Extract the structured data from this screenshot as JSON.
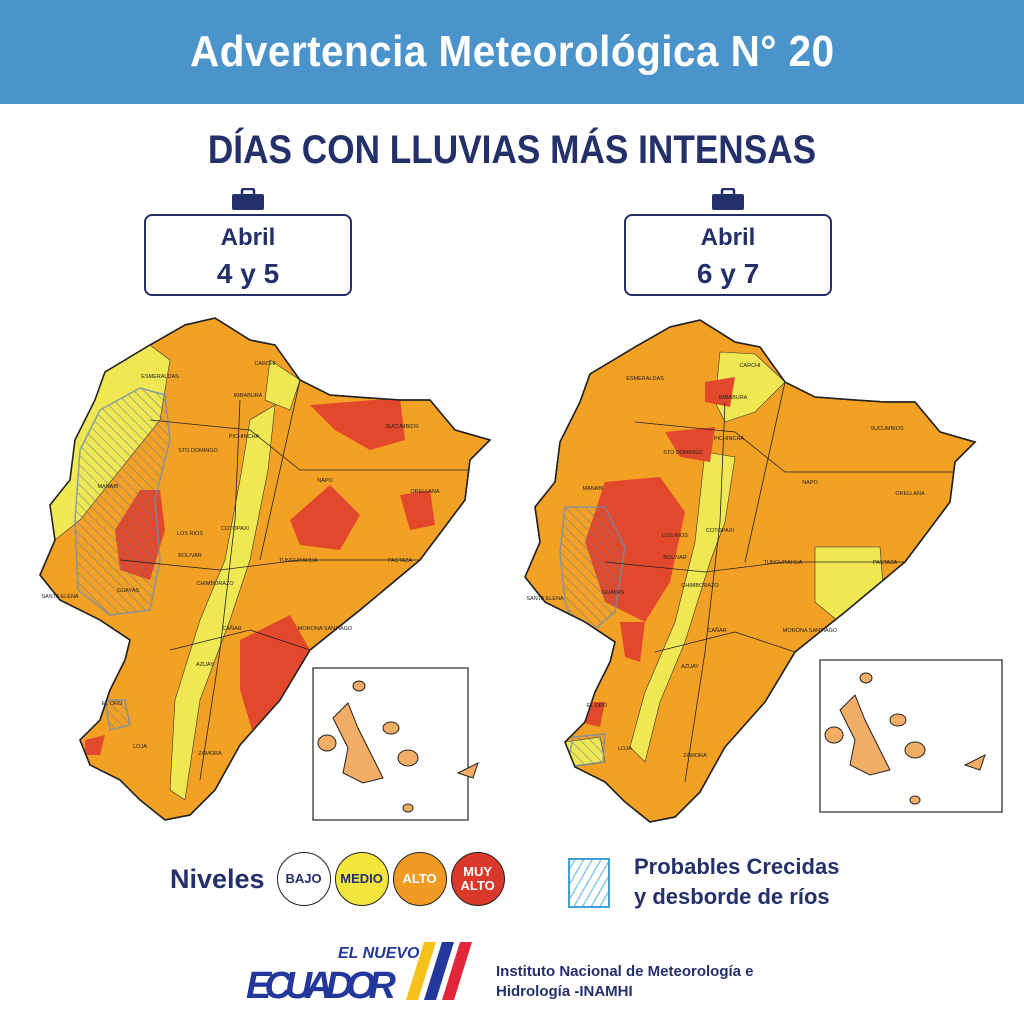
{
  "header": {
    "title": "Advertencia Meteorológica N° 20"
  },
  "subtitle": {
    "normal": "DÍAS CON LLUVIAS ",
    "bold": "MÁS INTENSAS"
  },
  "panels": [
    {
      "month": "Abril",
      "days": "4 y 5"
    },
    {
      "month": "Abril",
      "days": "6 y 7"
    }
  ],
  "provinces": [
    "ESMERALDAS",
    "CARCHI",
    "IMBABURA",
    "SUCUMBIOS",
    "PICHINCHA",
    "STO DOMINGO",
    "MANABI",
    "NAPO",
    "ORELLANA",
    "COTOPAXI",
    "LOS RIOS",
    "TUNGURAHUA",
    "BOLIVAR",
    "PASTAZA",
    "CHIMBORAZO",
    "SANTA ELENA",
    "GUAYAS",
    "CAÑAR",
    "MORONA SANTIAGO",
    "AZUAY",
    "EL ORO",
    "LOJA",
    "ZAMORA"
  ],
  "legend": {
    "title": "Niveles",
    "levels": [
      {
        "label": "BAJO",
        "color": "#ffffff"
      },
      {
        "label": "MEDIO",
        "color": "#f2e63c"
      },
      {
        "label": "ALTO",
        "color": "#f19a24"
      },
      {
        "label": "MUY ALTO",
        "color": "#d9382a"
      }
    ],
    "flood_line1": "Probables Crecidas",
    "flood_line2": "y desborde de ríos"
  },
  "footer": {
    "logo_small": "EL NUEVO",
    "logo_big": "ECUADOR",
    "institute_line1": "Instituto Nacional de Meteorología e",
    "institute_line2": "Hidrología -INAMHI"
  }
}
